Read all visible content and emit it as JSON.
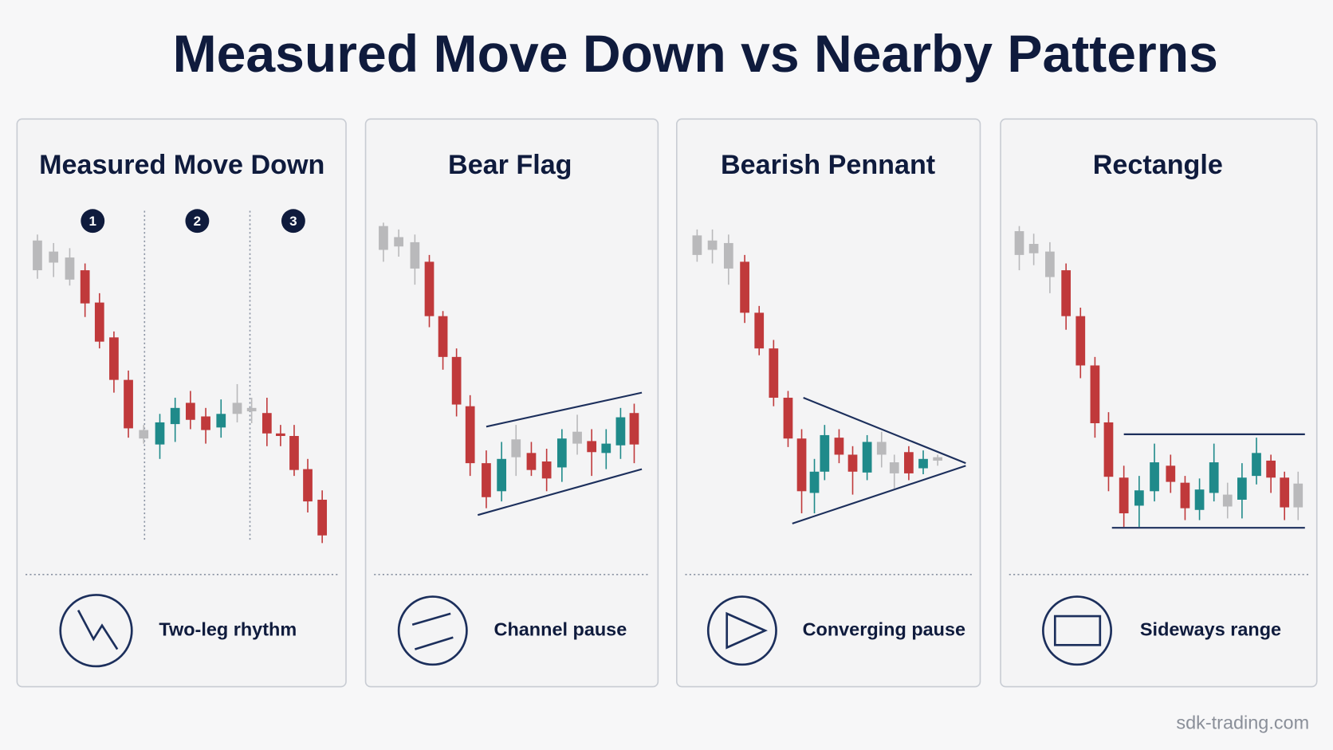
{
  "title": "Measured Move Down vs Nearby Patterns",
  "panels": [
    {
      "title": "Measured Move Down",
      "steps": [
        "1",
        "2",
        "3"
      ],
      "caption": "Two-leg rhythm"
    },
    {
      "title": "Bear Flag",
      "caption": "Channel pause"
    },
    {
      "title": "Bearish Pennant",
      "caption": "Converging pause"
    },
    {
      "title": "Rectangle",
      "caption": "Sideways range"
    }
  ],
  "footer": "sdk-trading.com"
}
